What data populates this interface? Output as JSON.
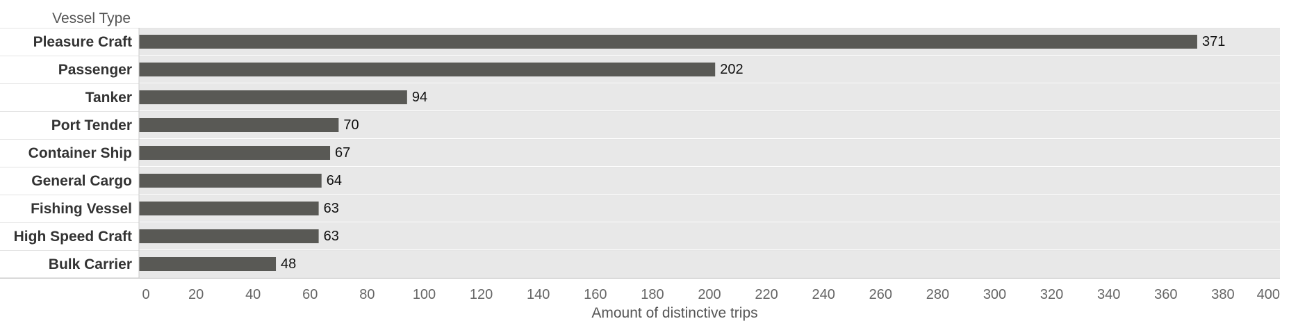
{
  "chart_data": {
    "type": "bar",
    "orientation": "horizontal",
    "row_header": "Vessel Type",
    "xlabel": "Amount of distinctive trips",
    "xlim": [
      0,
      400
    ],
    "xticks": [
      0,
      20,
      40,
      60,
      80,
      100,
      120,
      140,
      160,
      180,
      200,
      220,
      240,
      260,
      280,
      300,
      320,
      340,
      360,
      380,
      400
    ],
    "grid": false,
    "categories": [
      "Pleasure Craft",
      "Passenger",
      "Tanker",
      "Port Tender",
      "Container Ship",
      "General Cargo",
      "Fishing Vessel",
      "High Speed Craft",
      "Bulk Carrier"
    ],
    "values": [
      371,
      202,
      94,
      70,
      67,
      64,
      63,
      63,
      48
    ],
    "data_labels": [
      "371",
      "202",
      "94",
      "70",
      "67",
      "64",
      "63",
      "63",
      "48"
    ],
    "colors": {
      "bar": "#595955",
      "band": "#e8e8e8",
      "separator": "#ffffff",
      "frame": "#cccccc"
    }
  }
}
